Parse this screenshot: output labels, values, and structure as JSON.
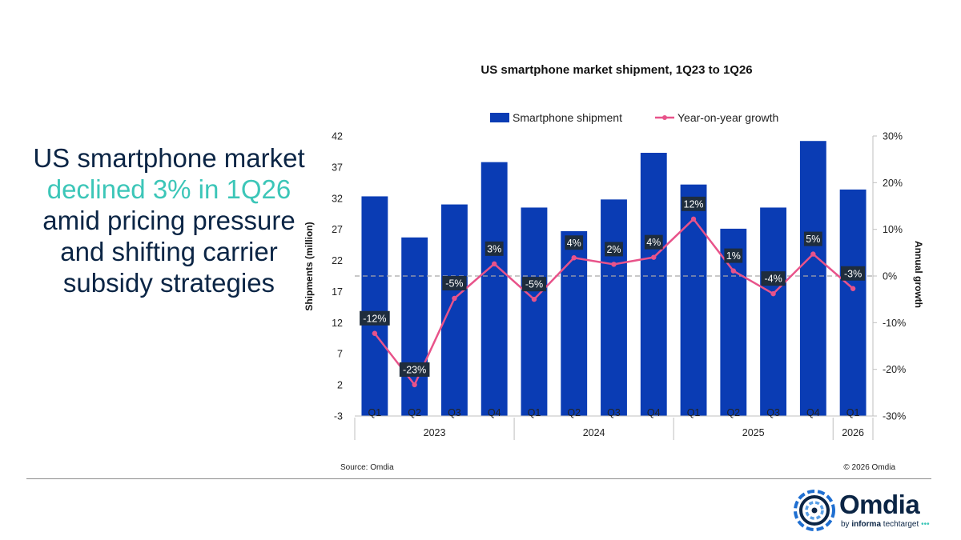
{
  "headline": {
    "part1": "US smartphone market ",
    "highlight": "declined 3% in 1Q26",
    "part2": " amid pricing pressure and shifting carrier subsidy strategies"
  },
  "chart_data": {
    "type": "bar",
    "title": "US smartphone market shipment, 1Q23 to 1Q26",
    "categories": [
      "Q1",
      "Q2",
      "Q3",
      "Q4",
      "Q1",
      "Q2",
      "Q3",
      "Q4",
      "Q1",
      "Q2",
      "Q3",
      "Q4",
      "Q1"
    ],
    "year_groups": [
      {
        "label": "2023",
        "count": 4
      },
      {
        "label": "2024",
        "count": 4
      },
      {
        "label": "2025",
        "count": 4
      },
      {
        "label": "2026",
        "count": 1
      }
    ],
    "series": [
      {
        "name": "Smartphone shipment",
        "type": "bar",
        "axis": "left",
        "color": "#0a3cb4",
        "values": [
          32.3,
          25.7,
          31.0,
          37.8,
          30.5,
          26.7,
          31.8,
          39.3,
          34.2,
          27.1,
          30.5,
          41.2,
          33.4
        ]
      },
      {
        "name": "Year-on-year growth",
        "type": "line",
        "axis": "right",
        "color": "#e8538a",
        "values": [
          -12,
          -23,
          -5,
          3,
          -5,
          4,
          2,
          4,
          12,
          1,
          -4,
          5,
          -3
        ],
        "labels": [
          "-12%",
          "-23%",
          "-5%",
          "3%",
          "-5%",
          "4%",
          "2%",
          "4%",
          "12%",
          "1%",
          "-4%",
          "5%",
          "-3%"
        ],
        "plot_values": [
          -12.3,
          -23.3,
          -4.8,
          2.6,
          -5.0,
          3.9,
          2.5,
          4.0,
          12.2,
          1.1,
          -3.8,
          4.7,
          -2.7
        ]
      }
    ],
    "ylabel": "Shipments (million)",
    "y2label": "Annual growth",
    "ylim": [
      -3,
      42
    ],
    "yticks": [
      "42",
      "37",
      "32",
      "27",
      "22",
      "17",
      "12",
      "7",
      "2",
      "-3"
    ],
    "y2lim": [
      -30,
      30
    ],
    "y2ticks": [
      "30%",
      "20%",
      "10%",
      "0%",
      "-10%",
      "-20%",
      "-30%"
    ],
    "legend_position": "top",
    "source": "Source: Omdia",
    "copyright": "© 2026 Omdia"
  },
  "logo": {
    "word": "Omdia",
    "tag_by": "by ",
    "tag_informa": "informa",
    "tag_rest": " techtarget"
  },
  "colors": {
    "bar": "#0a3cb4",
    "line": "#e8538a",
    "headline": "#0b2545",
    "highlight": "#3cc6b8"
  }
}
